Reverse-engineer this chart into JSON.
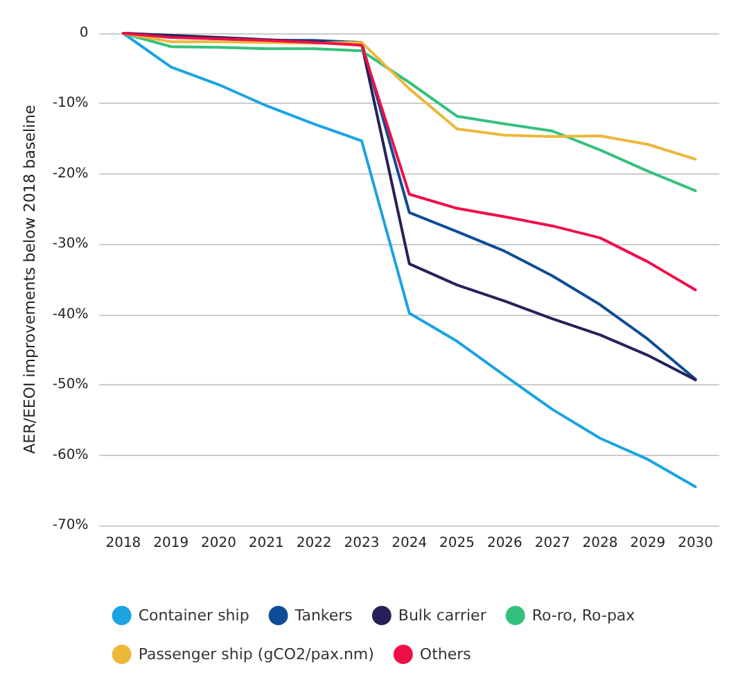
{
  "chart_data": {
    "type": "line",
    "ylabel": "AER/EEOI improvements below 2018 baseline",
    "categories": [
      "2018",
      "2019",
      "2020",
      "2021",
      "2022",
      "2023",
      "2024",
      "2025",
      "2026",
      "2027",
      "2028",
      "2029",
      "2030"
    ],
    "series": [
      {
        "name": "Container ship",
        "color": "#1ba3e2",
        "values": [
          0,
          -4.8,
          -7.3,
          -10.3,
          -12.9,
          -15.3,
          -39.8,
          -43.8,
          -48.7,
          -53.5,
          -57.6,
          -60.6,
          -64.5
        ]
      },
      {
        "name": "Tankers",
        "color": "#0e4c96",
        "values": [
          0,
          -0.4,
          -0.8,
          -1.0,
          -1.0,
          -1.3,
          -25.5,
          -28.2,
          -31.0,
          -34.5,
          -38.6,
          -43.5,
          -49.2
        ]
      },
      {
        "name": "Bulk carrier",
        "color": "#24215a",
        "values": [
          0,
          -0.3,
          -0.6,
          -0.9,
          -1.2,
          -1.5,
          -32.8,
          -35.8,
          -38.1,
          -40.6,
          -42.9,
          -45.8,
          -49.3
        ]
      },
      {
        "name": "Ro-ro, Ro-pax",
        "color": "#34c17c",
        "values": [
          0,
          -1.9,
          -2.0,
          -2.2,
          -2.2,
          -2.5,
          -7.0,
          -11.8,
          -12.9,
          -13.9,
          -16.6,
          -19.6,
          -22.4
        ]
      },
      {
        "name": "Passenger ship (gCO2/pax.nm)",
        "color": "#ecb83a",
        "values": [
          0,
          -1.2,
          -1.2,
          -1.3,
          -1.4,
          -1.3,
          -7.9,
          -13.6,
          -14.5,
          -14.7,
          -14.6,
          -15.8,
          -17.9
        ]
      },
      {
        "name": "Others",
        "color": "#ee0f47",
        "values": [
          0,
          -0.6,
          -0.8,
          -1.0,
          -1.3,
          -1.7,
          -22.9,
          -24.9,
          -26.1,
          -27.4,
          -29.1,
          -32.5,
          -36.5
        ]
      }
    ],
    "ylim": [
      -70,
      0
    ],
    "yticks": [
      {
        "value": 0,
        "label": "0"
      },
      {
        "value": -10,
        "label": "-10%"
      },
      {
        "value": -20,
        "label": "-20%"
      },
      {
        "value": -30,
        "label": "-30%"
      },
      {
        "value": -40,
        "label": "-40%"
      },
      {
        "value": -50,
        "label": "-50%"
      },
      {
        "value": -60,
        "label": "-60%"
      },
      {
        "value": -70,
        "label": "-70%"
      }
    ],
    "grid": "y",
    "legend": "bottom",
    "marker": "none",
    "line_style": "solid"
  }
}
